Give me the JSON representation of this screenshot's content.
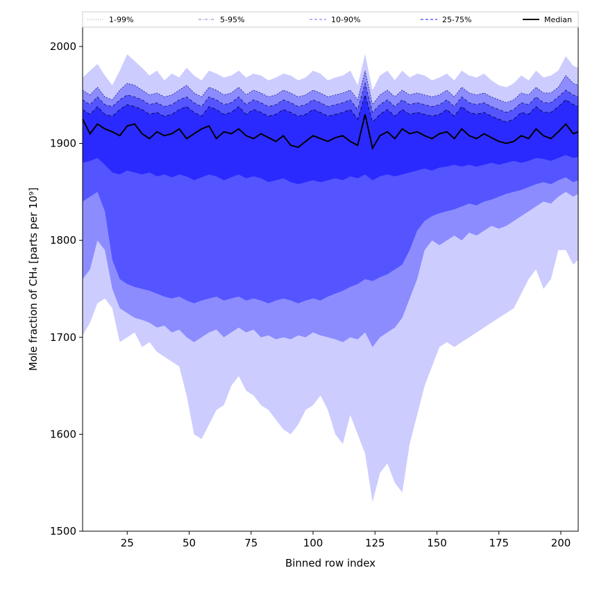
{
  "chart_data": {
    "type": "area",
    "title": "",
    "xlabel": "Binned row index",
    "ylabel": "Mole fraction of CH₄ [parts per 10⁹]",
    "xlim": [
      7,
      207
    ],
    "ylim": [
      1500,
      2020
    ],
    "xticks": [
      25,
      50,
      75,
      100,
      125,
      150,
      175,
      200
    ],
    "yticks": [
      1500,
      1600,
      1700,
      1800,
      1900,
      2000
    ],
    "grid": false,
    "legend_position": "top",
    "colors": {
      "band_1_99": "#ccccff",
      "band_5_95": "#8c8cff",
      "band_10_90": "#5555ff",
      "band_25_75": "#2a2aff",
      "median": "#000000"
    },
    "legend": [
      {
        "label": "1-99%",
        "style": "dotted",
        "color": "#b0b0b0"
      },
      {
        "label": "5-95%",
        "style": "dashdot",
        "color": "#9a9acc"
      },
      {
        "label": "10-90%",
        "style": "dashed",
        "color": "#8888ff"
      },
      {
        "label": "25-75%",
        "style": "dashed",
        "color": "#4040ff"
      },
      {
        "label": "Median",
        "style": "solid",
        "color": "#000000"
      }
    ],
    "x": [
      7,
      10,
      13,
      16,
      19,
      22,
      25,
      28,
      31,
      34,
      37,
      40,
      43,
      46,
      49,
      52,
      55,
      58,
      61,
      64,
      67,
      70,
      73,
      76,
      79,
      82,
      85,
      88,
      91,
      94,
      97,
      100,
      103,
      106,
      109,
      112,
      115,
      118,
      121,
      124,
      127,
      130,
      133,
      136,
      139,
      142,
      145,
      148,
      151,
      154,
      157,
      160,
      163,
      166,
      169,
      172,
      175,
      178,
      181,
      184,
      187,
      190,
      193,
      196,
      199,
      202,
      205,
      207
    ],
    "bands": [
      {
        "name": "1-99%",
        "upper": [
          1968,
          1975,
          1982,
          1970,
          1960,
          1975,
          1992,
          1985,
          1978,
          1970,
          1975,
          1965,
          1972,
          1968,
          1978,
          1970,
          1965,
          1975,
          1972,
          1968,
          1970,
          1975,
          1968,
          1972,
          1970,
          1965,
          1968,
          1972,
          1970,
          1965,
          1968,
          1975,
          1972,
          1965,
          1968,
          1970,
          1975,
          1960,
          1992,
          1955,
          1970,
          1975,
          1965,
          1975,
          1968,
          1972,
          1970,
          1965,
          1968,
          1972,
          1965,
          1975,
          1970,
          1968,
          1972,
          1965,
          1960,
          1958,
          1962,
          1970,
          1965,
          1975,
          1968,
          1970,
          1975,
          1990,
          1980,
          1978
        ],
        "lower": [
          1702,
          1715,
          1735,
          1740,
          1730,
          1695,
          1700,
          1705,
          1690,
          1695,
          1685,
          1680,
          1675,
          1670,
          1640,
          1600,
          1595,
          1610,
          1625,
          1630,
          1650,
          1660,
          1645,
          1640,
          1630,
          1625,
          1615,
          1605,
          1600,
          1610,
          1625,
          1630,
          1640,
          1625,
          1600,
          1590,
          1620,
          1600,
          1580,
          1530,
          1560,
          1570,
          1550,
          1540,
          1590,
          1620,
          1650,
          1670,
          1690,
          1695,
          1690,
          1695,
          1700,
          1705,
          1710,
          1715,
          1720,
          1725,
          1730,
          1745,
          1760,
          1770,
          1750,
          1760,
          1790,
          1790,
          1775,
          1780
        ]
      },
      {
        "name": "5-95%",
        "upper": [
          1955,
          1950,
          1958,
          1948,
          1945,
          1955,
          1962,
          1960,
          1955,
          1950,
          1952,
          1948,
          1950,
          1955,
          1960,
          1952,
          1948,
          1958,
          1955,
          1950,
          1952,
          1958,
          1950,
          1955,
          1952,
          1948,
          1950,
          1955,
          1952,
          1948,
          1950,
          1955,
          1952,
          1948,
          1950,
          1952,
          1955,
          1945,
          1975,
          1940,
          1950,
          1955,
          1948,
          1955,
          1950,
          1952,
          1950,
          1948,
          1950,
          1955,
          1948,
          1958,
          1952,
          1950,
          1952,
          1948,
          1945,
          1942,
          1945,
          1952,
          1950,
          1958,
          1952,
          1952,
          1958,
          1970,
          1962,
          1960
        ],
        "lower": [
          1760,
          1770,
          1800,
          1790,
          1750,
          1730,
          1725,
          1720,
          1718,
          1715,
          1710,
          1712,
          1705,
          1708,
          1700,
          1695,
          1700,
          1705,
          1708,
          1700,
          1705,
          1710,
          1705,
          1708,
          1700,
          1702,
          1698,
          1700,
          1698,
          1702,
          1700,
          1705,
          1702,
          1700,
          1698,
          1695,
          1700,
          1698,
          1705,
          1690,
          1700,
          1705,
          1710,
          1720,
          1740,
          1760,
          1790,
          1800,
          1795,
          1800,
          1805,
          1800,
          1808,
          1805,
          1810,
          1815,
          1812,
          1815,
          1820,
          1825,
          1830,
          1835,
          1840,
          1838,
          1845,
          1850,
          1845,
          1848
        ]
      },
      {
        "name": "10-90%",
        "upper": [
          1945,
          1940,
          1948,
          1940,
          1938,
          1945,
          1950,
          1948,
          1945,
          1940,
          1942,
          1938,
          1940,
          1945,
          1948,
          1942,
          1938,
          1948,
          1945,
          1940,
          1942,
          1948,
          1940,
          1945,
          1942,
          1938,
          1940,
          1945,
          1942,
          1938,
          1940,
          1945,
          1942,
          1938,
          1940,
          1942,
          1945,
          1935,
          1962,
          1932,
          1940,
          1945,
          1938,
          1945,
          1940,
          1942,
          1940,
          1938,
          1940,
          1945,
          1938,
          1948,
          1942,
          1940,
          1942,
          1938,
          1935,
          1932,
          1935,
          1942,
          1940,
          1948,
          1942,
          1942,
          1948,
          1955,
          1950,
          1948
        ],
        "lower": [
          1840,
          1845,
          1850,
          1830,
          1780,
          1760,
          1755,
          1752,
          1750,
          1748,
          1745,
          1742,
          1740,
          1742,
          1738,
          1735,
          1738,
          1740,
          1742,
          1738,
          1740,
          1742,
          1738,
          1740,
          1738,
          1735,
          1738,
          1740,
          1738,
          1735,
          1738,
          1740,
          1738,
          1742,
          1745,
          1748,
          1752,
          1755,
          1760,
          1758,
          1762,
          1765,
          1770,
          1775,
          1790,
          1810,
          1820,
          1825,
          1828,
          1830,
          1832,
          1835,
          1838,
          1836,
          1840,
          1842,
          1845,
          1848,
          1850,
          1852,
          1855,
          1858,
          1860,
          1858,
          1862,
          1865,
          1860,
          1862
        ]
      },
      {
        "name": "25-75%",
        "upper": [
          1935,
          1930,
          1938,
          1930,
          1928,
          1935,
          1940,
          1938,
          1935,
          1930,
          1932,
          1928,
          1930,
          1935,
          1938,
          1932,
          1928,
          1938,
          1935,
          1930,
          1932,
          1938,
          1930,
          1935,
          1932,
          1928,
          1930,
          1935,
          1932,
          1928,
          1930,
          1935,
          1932,
          1928,
          1930,
          1932,
          1935,
          1925,
          1950,
          1922,
          1930,
          1935,
          1928,
          1935,
          1930,
          1932,
          1930,
          1928,
          1930,
          1935,
          1928,
          1938,
          1932,
          1930,
          1932,
          1928,
          1925,
          1922,
          1925,
          1932,
          1930,
          1938,
          1932,
          1932,
          1938,
          1945,
          1940,
          1938
        ],
        "lower": [
          1880,
          1882,
          1885,
          1878,
          1870,
          1868,
          1872,
          1870,
          1868,
          1870,
          1866,
          1868,
          1865,
          1868,
          1866,
          1862,
          1865,
          1868,
          1866,
          1862,
          1865,
          1868,
          1864,
          1866,
          1864,
          1860,
          1862,
          1864,
          1860,
          1858,
          1860,
          1862,
          1860,
          1862,
          1864,
          1862,
          1866,
          1864,
          1868,
          1862,
          1866,
          1868,
          1866,
          1868,
          1870,
          1872,
          1874,
          1872,
          1875,
          1876,
          1878,
          1876,
          1878,
          1876,
          1878,
          1880,
          1878,
          1880,
          1882,
          1880,
          1882,
          1885,
          1884,
          1882,
          1885,
          1888,
          1885,
          1886
        ]
      }
    ],
    "median": [
      1925,
      1910,
      1920,
      1915,
      1912,
      1908,
      1918,
      1920,
      1910,
      1905,
      1912,
      1908,
      1910,
      1915,
      1905,
      1910,
      1915,
      1918,
      1905,
      1912,
      1910,
      1915,
      1908,
      1905,
      1910,
      1906,
      1902,
      1908,
      1898,
      1896,
      1902,
      1908,
      1905,
      1902,
      1906,
      1908,
      1902,
      1898,
      1930,
      1895,
      1908,
      1912,
      1905,
      1915,
      1910,
      1912,
      1908,
      1905,
      1910,
      1912,
      1905,
      1915,
      1908,
      1905,
      1910,
      1906,
      1902,
      1900,
      1902,
      1908,
      1905,
      1915,
      1908,
      1905,
      1912,
      1920,
      1910,
      1912
    ]
  }
}
